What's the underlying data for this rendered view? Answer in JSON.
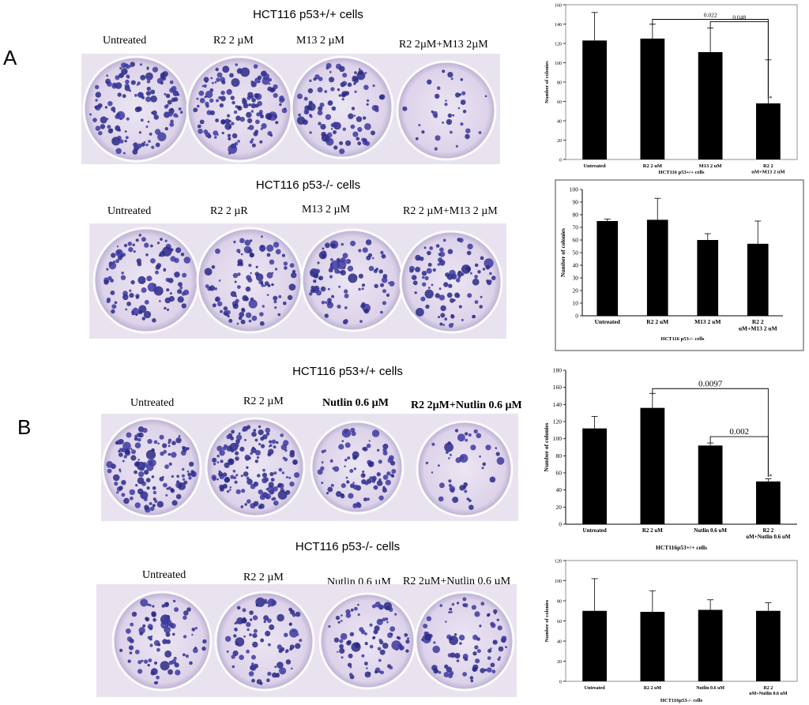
{
  "panels": [
    {
      "letter": "A",
      "sections": [
        {
          "title": "HCT116 p53+/+ cells",
          "plate_labels": [
            "Untreated",
            "R2  2 µM",
            "M13 2 µM",
            "R2  2µM+M13 2µM"
          ],
          "plate_density": [
            1.0,
            1.0,
            0.7,
            0.25
          ]
        },
        {
          "title": "HCT116 p53-/- cells",
          "plate_labels": [
            "Untreated",
            "R2 2 µR",
            "M13 2 µM",
            "R2 2 µM+M13 2 µM"
          ],
          "plate_density": [
            0.75,
            0.75,
            0.65,
            0.65
          ]
        }
      ]
    },
    {
      "letter": "B",
      "sections": [
        {
          "title": "HCT116 p53+/+ cells",
          "plate_labels": [
            "Untreated",
            "R2  2 µM",
            "Nutlin 0.6 µM",
            "R2 2µM+Nutlin 0.6 µM"
          ],
          "plate_density": [
            0.9,
            1.0,
            0.6,
            0.3
          ]
        },
        {
          "title": "HCT116 p53-/- cells",
          "plate_labels": [
            "Untreated",
            "R2 2 µM",
            "Nutlin 0.6 µM",
            "R2 2µM+Nutlin 0.6 µM"
          ],
          "plate_density": [
            0.6,
            0.6,
            0.6,
            0.6
          ]
        }
      ]
    }
  ],
  "chart_data": [
    {
      "type": "bar",
      "title": "",
      "xlabel": "HCT116 p53+/+ cells",
      "ylabel": "Number of colonies",
      "categories": [
        "Untreated",
        "R2 2 uM",
        "M13 2 uM",
        "R2 2 uM+M13 2 uM"
      ],
      "values": [
        123,
        125,
        111,
        58
      ],
      "errors": [
        29,
        15,
        25,
        45
      ],
      "ylim": [
        0,
        160
      ],
      "yticks": [
        0,
        20,
        40,
        60,
        80,
        100,
        120,
        140,
        160
      ],
      "annotations": [
        {
          "from": 1,
          "to": 3,
          "label": "0.022"
        },
        {
          "from": 2,
          "to": 3,
          "label": "0.048"
        }
      ],
      "stars": [
        3
      ],
      "grid": false
    },
    {
      "type": "bar",
      "title": "",
      "xlabel": "HCT116 p53-/- cells",
      "ylabel": "Number of colonies",
      "categories": [
        "Untreated",
        "R2 2 uM",
        "M13 2 uM",
        "R2 2 uM+M13 2 uM"
      ],
      "values": [
        75,
        76,
        60,
        57
      ],
      "errors": [
        1.5,
        17,
        5,
        18
      ],
      "ylim": [
        0,
        100
      ],
      "yticks": [
        0,
        10,
        20,
        30,
        40,
        50,
        60,
        70,
        80,
        90,
        100
      ],
      "annotations": [],
      "stars": [],
      "grid": false
    },
    {
      "type": "bar",
      "title": "",
      "xlabel": "HCT116p53+/+ cells",
      "ylabel": "Number of colonies",
      "categories": [
        "Untreated",
        "R2 2 uM",
        "Nutlin 0.6 uM",
        "R2 2 uM+Nutlin 0.6 uM"
      ],
      "values": [
        112,
        136,
        92,
        50
      ],
      "errors": [
        14,
        17,
        3,
        3
      ],
      "ylim": [
        0,
        180
      ],
      "yticks": [
        0,
        20,
        40,
        60,
        80,
        100,
        120,
        140,
        160,
        180
      ],
      "annotations": [
        {
          "from": 1,
          "to": 3,
          "label": "0.0097"
        },
        {
          "from": 2,
          "to": 3,
          "label": "0.002"
        }
      ],
      "stars": [
        3
      ],
      "grid": false
    },
    {
      "type": "bar",
      "title": "",
      "xlabel": "HCT116p53-/- cells",
      "ylabel": "Number of colonies",
      "categories": [
        "Untreated",
        "R2 2 uM",
        "Nutlin 0.6 uM",
        "R2 2 uM+Nutlin 0.6 uM"
      ],
      "values": [
        70,
        69,
        71,
        70
      ],
      "errors": [
        32,
        21,
        10,
        8
      ],
      "ylim": [
        0,
        120
      ],
      "yticks": [
        0,
        20,
        40,
        60,
        80,
        100,
        120
      ],
      "annotations": [],
      "stars": [],
      "grid": false
    }
  ]
}
